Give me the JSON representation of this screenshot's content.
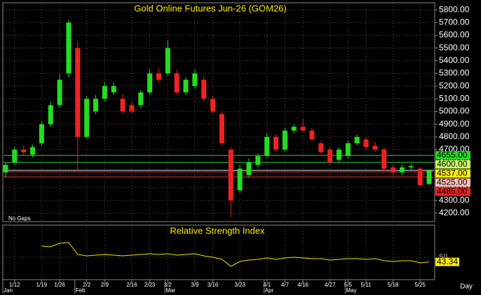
{
  "chart_data": [
    {
      "type": "candlestick",
      "title": "Gold Online Futures Jun-26 (GOM26)",
      "note": "No Gaps",
      "axis_unit": "Day",
      "categories": [
        null,
        "1/12",
        null,
        null,
        "1/19",
        null,
        "1/26",
        null,
        null,
        "2/2",
        null,
        "2/9",
        null,
        null,
        "2/16",
        null,
        "2/23",
        null,
        "3/2",
        null,
        null,
        "3/9",
        null,
        "3/16",
        null,
        null,
        "3/23",
        null,
        null,
        "4/1",
        null,
        "4/7",
        null,
        "4/16",
        null,
        null,
        "4/27",
        null,
        "5/5",
        null,
        "5/11",
        null,
        null,
        "5/18",
        null,
        null,
        "5/25",
        null
      ],
      "months": [
        "Jan",
        null,
        null,
        null,
        null,
        null,
        null,
        null,
        "Feb",
        null,
        null,
        null,
        null,
        null,
        null,
        null,
        null,
        null,
        "Mar",
        null,
        null,
        null,
        null,
        null,
        null,
        null,
        null,
        null,
        null,
        "Apr",
        null,
        null,
        null,
        null,
        null,
        null,
        null,
        null,
        "May",
        null,
        null,
        null,
        null,
        null,
        null,
        null,
        null,
        null
      ],
      "open": [
        4520,
        4600,
        4700,
        4660,
        4750,
        4900,
        5050,
        5300,
        5500,
        4800,
        5000,
        5100,
        5150,
        5100,
        5050,
        5050,
        5150,
        5300,
        5300,
        5300,
        5150,
        5200,
        5250,
        5100,
        4980,
        4700,
        4380,
        4500,
        4580,
        4650,
        4800,
        4700,
        4850,
        4880,
        4850,
        4750,
        4700,
        4620,
        4650,
        4750,
        4780,
        4730,
        4700,
        4560,
        4520,
        4560,
        4550,
        4430
      ],
      "high": [
        4600,
        4720,
        4730,
        4740,
        4920,
        5080,
        5300,
        5720,
        5550,
        5120,
        5130,
        5230,
        5230,
        5140,
        5080,
        5170,
        5330,
        5340,
        5560,
        5330,
        5270,
        5330,
        5280,
        5120,
        5000,
        4720,
        4580,
        4630,
        4670,
        4830,
        4820,
        4870,
        4900,
        4940,
        4870,
        4770,
        4720,
        4720,
        4770,
        4820,
        4800,
        4760,
        4720,
        4580,
        4580,
        4590,
        4560,
        4545
      ],
      "low": [
        4480,
        4580,
        4660,
        4640,
        4730,
        4880,
        5030,
        5270,
        4530,
        4790,
        4980,
        5080,
        5130,
        4980,
        4980,
        5030,
        5130,
        5230,
        5280,
        5130,
        5130,
        5180,
        5080,
        4980,
        4730,
        4170,
        4360,
        4480,
        4560,
        4630,
        4680,
        4680,
        4830,
        4840,
        4770,
        4670,
        4580,
        4600,
        4630,
        4730,
        4700,
        4680,
        4530,
        4500,
        4500,
        4540,
        4410,
        4420
      ],
      "close": [
        4580,
        4700,
        4680,
        4720,
        4900,
        5050,
        5250,
        5700,
        4800,
        5100,
        5100,
        5200,
        5200,
        5000,
        5000,
        5150,
        5300,
        5250,
        5500,
        5150,
        5250,
        5300,
        5100,
        5000,
        4750,
        4300,
        4550,
        4600,
        4650,
        4800,
        4700,
        4850,
        4880,
        4850,
        4780,
        4680,
        4600,
        4700,
        4750,
        4800,
        4720,
        4700,
        4550,
        4520,
        4560,
        4570,
        4420,
        4537
      ],
      "up_color": "#22dd22",
      "down_color": "#ee2222",
      "ylim": [
        4150,
        5850
      ],
      "yticks": [
        {
          "value": 4200,
          "label": "4200.00"
        },
        {
          "value": 4300,
          "label": "4300.00"
        },
        {
          "value": 4400,
          "label": "4400.00"
        },
        {
          "value": 4500,
          "label": "4500.00"
        },
        {
          "value": 4600,
          "label": "4600.00"
        },
        {
          "value": 4700,
          "label": "4700.00"
        },
        {
          "value": 4800,
          "label": "4800.00"
        },
        {
          "value": 4900,
          "label": "4900.00"
        },
        {
          "value": 5000,
          "label": "5000.00"
        },
        {
          "value": 5100,
          "label": "5100.00"
        },
        {
          "value": 5200,
          "label": "5200.00"
        },
        {
          "value": 5300,
          "label": "5300.00"
        },
        {
          "value": 5400,
          "label": "5400.00"
        },
        {
          "value": 5500,
          "label": "5500.00"
        },
        {
          "value": 5600,
          "label": "5600.00"
        },
        {
          "value": 5700,
          "label": "5700.00"
        },
        {
          "value": 5800,
          "label": "5800.00"
        }
      ],
      "levels": [
        {
          "value": 4655,
          "label": "4655.00",
          "color": "#22cc22",
          "box_color": "#22dd22"
        },
        {
          "value": 4600,
          "label": "4600.00",
          "color": "#22cc22",
          "box_color": "#ccff66"
        },
        {
          "value": 4537,
          "label": "4537.00",
          "color": "#dddddd",
          "box_color": "#ffee00"
        },
        {
          "value": 4525,
          "label": "4525.00",
          "color": "#ee3333",
          "box_color": "#ffbbbb"
        },
        {
          "value": 4485,
          "label": "4485.00",
          "color": "#ee3333",
          "box_color": "#ee2222"
        }
      ],
      "grid": true
    },
    {
      "type": "line",
      "title": "Relative Strength Index",
      "series": [
        {
          "color": "#e8e800",
          "values": [
            null,
            null,
            null,
            null,
            66,
            65,
            70,
            71,
            54,
            52,
            53,
            54,
            53,
            52,
            53,
            54,
            55,
            54,
            55,
            53,
            54,
            55,
            52,
            50,
            47,
            37,
            44,
            46,
            47,
            49,
            47,
            49,
            50,
            49,
            48,
            48,
            46,
            47,
            48,
            48,
            47,
            48,
            45,
            44,
            45,
            45,
            42,
            43.34
          ]
        }
      ],
      "ylim": [
        20,
        80
      ],
      "yticks": [
        50
      ],
      "grid": true
    }
  ]
}
